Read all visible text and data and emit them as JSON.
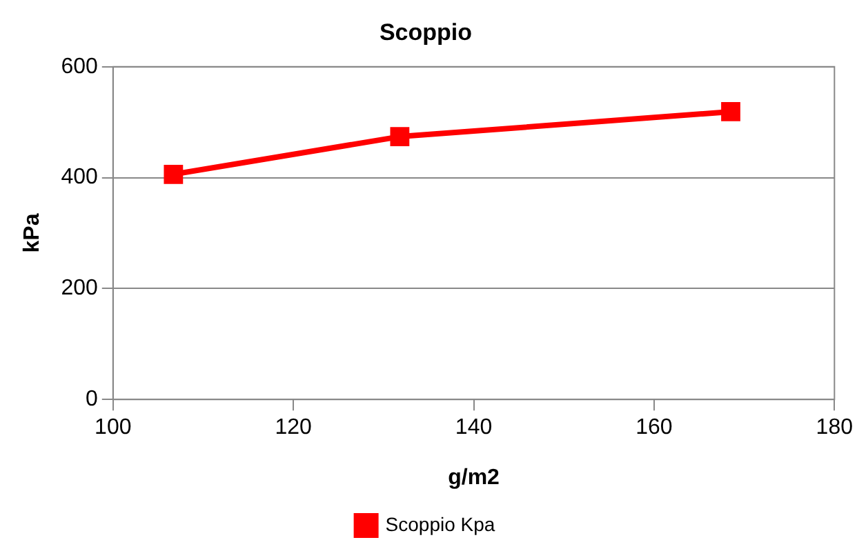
{
  "chart_data": {
    "type": "line",
    "title": "Scoppio",
    "xlabel": "g/m2",
    "ylabel": "kPa",
    "x": [
      106.7,
      131.8,
      168.5
    ],
    "series": [
      {
        "name": "Scoppio Kpa",
        "color": "#ff0000",
        "values": [
          406,
          474,
          519
        ]
      }
    ],
    "xlim": [
      100,
      180
    ],
    "xticks": [
      100,
      120,
      140,
      160,
      180
    ],
    "ylim": [
      0,
      600
    ],
    "yticks": [
      0,
      200,
      400,
      600
    ],
    "grid": "y",
    "legend": "bottom",
    "marker": "square",
    "line_style": "solid"
  }
}
